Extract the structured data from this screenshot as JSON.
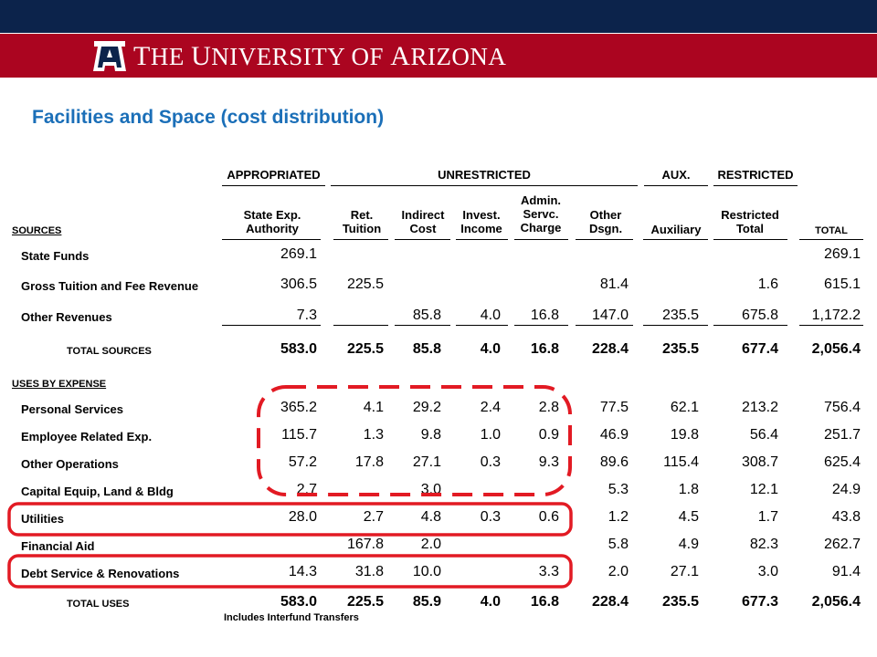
{
  "header": {
    "university_name_parts": [
      {
        "text": "T",
        "big": true
      },
      {
        "text": "HE ",
        "big": false
      },
      {
        "text": "U",
        "big": true
      },
      {
        "text": "NIVERSITY OF ",
        "big": false
      },
      {
        "text": "A",
        "big": true
      },
      {
        "text": "RIZONA",
        "big": false
      }
    ],
    "colors": {
      "navy": "#0c234b",
      "red": "#ab0520",
      "title_blue": "#1b6fb8"
    }
  },
  "title": "Facilities and Space (cost distribution)",
  "group_headers": [
    {
      "label": "APPROPRIATED"
    },
    {
      "label": "UNRESTRICTED"
    },
    {
      "label": "AUX."
    },
    {
      "label": "RESTRICTED"
    }
  ],
  "columns": [
    "State Exp.\nAuthority",
    "Ret.\nTuition",
    "Indirect\nCost",
    "Invest.\nIncome",
    "Admin.\nServc.\nCharge",
    "Other\nDsgn.",
    "Auxiliary",
    "Restricted\nTotal",
    "TOTAL"
  ],
  "sections": {
    "sources": "SOURCES",
    "uses": "USES BY EXPENSE"
  },
  "source_rows": [
    {
      "label": "State Funds",
      "values": [
        "269.1",
        "",
        "",
        "",
        "",
        "",
        "",
        "",
        "269.1"
      ]
    },
    {
      "label": "Gross Tuition and Fee Revenue",
      "values": [
        "306.5",
        "225.5",
        "",
        "",
        "",
        "81.4",
        "",
        "1.6",
        "615.1"
      ]
    },
    {
      "label": "Other Revenues",
      "values": [
        "7.3",
        "",
        "85.8",
        "4.0",
        "16.8",
        "147.0",
        "235.5",
        "675.8",
        "1,172.2"
      ]
    }
  ],
  "total_sources": {
    "label": "TOTAL SOURCES",
    "values": [
      "583.0",
      "225.5",
      "85.8",
      "4.0",
      "16.8",
      "228.4",
      "235.5",
      "677.4",
      "2,056.4"
    ]
  },
  "use_rows": [
    {
      "label": "Personal Services",
      "values": [
        "365.2",
        "4.1",
        "29.2",
        "2.4",
        "2.8",
        "77.5",
        "62.1",
        "213.2",
        "756.4"
      ]
    },
    {
      "label": "Employee Related Exp.",
      "values": [
        "115.7",
        "1.3",
        "9.8",
        "1.0",
        "0.9",
        "46.9",
        "19.8",
        "56.4",
        "251.7"
      ]
    },
    {
      "label": "Other Operations",
      "values": [
        "57.2",
        "17.8",
        "27.1",
        "0.3",
        "9.3",
        "89.6",
        "115.4",
        "308.7",
        "625.4"
      ]
    },
    {
      "label": "Capital Equip, Land & Bldg",
      "values": [
        "2.7",
        "",
        "3.0",
        "",
        "",
        "5.3",
        "1.8",
        "12.1",
        "24.9"
      ]
    },
    {
      "label": "Utilities",
      "values": [
        "28.0",
        "2.7",
        "4.8",
        "0.3",
        "0.6",
        "1.2",
        "4.5",
        "1.7",
        "43.8"
      ]
    },
    {
      "label": "Financial Aid",
      "values": [
        "",
        "167.8",
        "2.0",
        "",
        "",
        "5.8",
        "4.9",
        "82.3",
        "262.7"
      ]
    },
    {
      "label": "Debt Service & Renovations",
      "values": [
        "14.3",
        "31.8",
        "10.0",
        "",
        "3.3",
        "2.0",
        "27.1",
        "3.0",
        "91.4"
      ]
    }
  ],
  "total_uses": {
    "label": "TOTAL USES",
    "values": [
      "583.0",
      "225.5",
      "85.9",
      "4.0",
      "16.8",
      "228.4",
      "235.5",
      "677.3",
      "2,056.4"
    ]
  },
  "footnote": "Includes Interfund Transfers",
  "highlights": {
    "dashed_box": {
      "color": "#e21a23",
      "style": "dashed",
      "covers": "Personal Services – Capital Equip, Land & Bldg; State Exp. Authority – Admin. Servc. Charge"
    },
    "solid_boxes": [
      {
        "color": "#e21a23",
        "covers": "Utilities"
      },
      {
        "color": "#e21a23",
        "covers": "Debt Service & Renovations"
      }
    ]
  }
}
